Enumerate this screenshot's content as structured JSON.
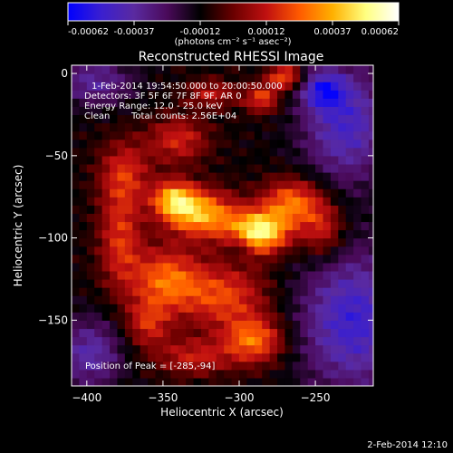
{
  "colorbar": {
    "ticks": [
      "-0.00062",
      "-0.00037",
      "-0.00012",
      "0.00012",
      "0.00037",
      "0.00062"
    ],
    "unit_label": "(photons cm⁻² s⁻¹ asec⁻²)",
    "range": [
      -0.00062,
      0.00062
    ],
    "colors": [
      "#0000ff",
      "#3a1fd0",
      "#5a2aa0",
      "#4a0a5a",
      "#000000",
      "#6a0000",
      "#c01010",
      "#ff5a00",
      "#ffb000",
      "#ffff80",
      "#ffffff"
    ]
  },
  "chart_data": {
    "type": "heatmap",
    "title": "Reconstructed RHESSI Image",
    "xlabel": "Heliocentric X (arcsec)",
    "ylabel": "Heliocentric Y (arcsec)",
    "xlim": [
      -410,
      -212
    ],
    "ylim": [
      -190,
      5
    ],
    "xticks": [
      -400,
      -350,
      -300,
      -250
    ],
    "yticks": [
      0,
      -50,
      -100,
      -150
    ],
    "annotations": {
      "time_range": "1-Feb-2014 19:54:50.000 to 20:00:50.000",
      "detectors": "Detectors: 3F 5F 6F 7F 8F 9F, AR 0",
      "energy": "Energy Range: 12.0 - 25.0 keV",
      "method": "Clean",
      "counts": "Total counts: 2.56E+04",
      "peak": "Position of Peak = [-285,-94]"
    },
    "peak": [
      -285,
      -94
    ],
    "sources": [
      {
        "x": -287,
        "y": -96,
        "amp": 1.0,
        "sx": 14,
        "sy": 9
      },
      {
        "x": -325,
        "y": -85,
        "amp": 0.78,
        "sx": 16,
        "sy": 10
      },
      {
        "x": -343,
        "y": -76,
        "amp": 0.7,
        "sx": 10,
        "sy": 8
      },
      {
        "x": -265,
        "y": -78,
        "amp": 0.62,
        "sx": 14,
        "sy": 10
      },
      {
        "x": -245,
        "y": -95,
        "amp": 0.42,
        "sx": 10,
        "sy": 12
      },
      {
        "x": -348,
        "y": -125,
        "amp": 0.58,
        "sx": 16,
        "sy": 14
      },
      {
        "x": -310,
        "y": -135,
        "amp": 0.5,
        "sx": 20,
        "sy": 14
      },
      {
        "x": -290,
        "y": -162,
        "amp": 0.6,
        "sx": 14,
        "sy": 10
      },
      {
        "x": -330,
        "y": -172,
        "amp": 0.38,
        "sx": 18,
        "sy": 8
      },
      {
        "x": -378,
        "y": -100,
        "amp": 0.45,
        "sx": 10,
        "sy": 22
      },
      {
        "x": -375,
        "y": -60,
        "amp": 0.4,
        "sx": 12,
        "sy": 14
      },
      {
        "x": -340,
        "y": -40,
        "amp": 0.42,
        "sx": 14,
        "sy": 10
      },
      {
        "x": -285,
        "y": -15,
        "amp": 0.5,
        "sx": 8,
        "sy": 6
      },
      {
        "x": -270,
        "y": -2,
        "amp": 0.6,
        "sx": 8,
        "sy": 5
      },
      {
        "x": -318,
        "y": -12,
        "amp": 0.35,
        "sx": 12,
        "sy": 6
      },
      {
        "x": -360,
        "y": -152,
        "amp": 0.4,
        "sx": 10,
        "sy": 10
      }
    ],
    "negatives": [
      {
        "x": -230,
        "y": -30,
        "amp": -0.55,
        "sx": 20,
        "sy": 25
      },
      {
        "x": -225,
        "y": -150,
        "amp": -0.6,
        "sx": 25,
        "sy": 30
      },
      {
        "x": -398,
        "y": -170,
        "amp": -0.45,
        "sx": 15,
        "sy": 15
      },
      {
        "x": -395,
        "y": -5,
        "amp": -0.4,
        "sx": 18,
        "sy": 10
      },
      {
        "x": -300,
        "y": -105,
        "amp": -0.25,
        "sx": 6,
        "sy": 6
      },
      {
        "x": -245,
        "y": -10,
        "amp": -0.5,
        "sx": 10,
        "sy": 8
      }
    ]
  },
  "footer": {
    "timestamp": "2-Feb-2014 12:10"
  }
}
